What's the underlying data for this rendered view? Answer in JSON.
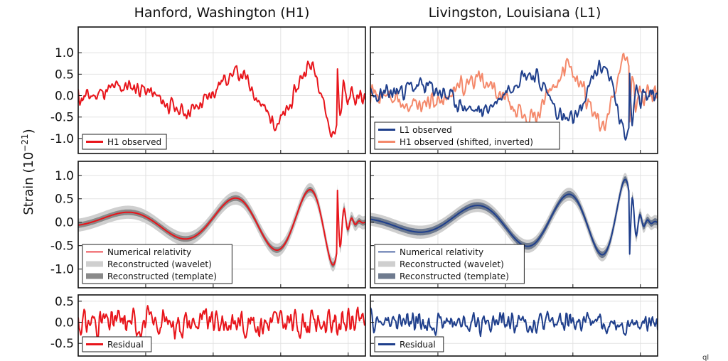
{
  "figure": {
    "ylabel_main": "Strain (10",
    "ylabel_exp": "−21",
    "ylabel_close": ")",
    "corner_mark": "ql"
  },
  "chart_data": [
    {
      "type": "line",
      "id": "h1-observed",
      "title": "Hanford, Washington (H1)",
      "ylim": [
        -1.35,
        1.6
      ],
      "yticks": [
        -1.0,
        -0.5,
        0.0,
        0.5,
        1.0
      ],
      "ytick_labels": [
        "-1.0",
        "-0.5",
        "0.0",
        "0.5",
        "1.0"
      ],
      "grid": true,
      "legend_position": "bottom-left",
      "series": [
        {
          "name": "H1 observed",
          "style": "line",
          "color": "#e8151b",
          "generator": "noisy_chirp",
          "amp": 0.25,
          "seed": 11
        }
      ]
    },
    {
      "type": "line",
      "id": "l1-observed",
      "title": "Livingston, Louisiana (L1)",
      "ylim": [
        -1.35,
        1.6
      ],
      "yticks": [
        -1.0,
        -0.5,
        0.0,
        0.5,
        1.0
      ],
      "ytick_labels": [
        "-1.0",
        "-0.5",
        "0.0",
        "0.5",
        "1.0"
      ],
      "grid": true,
      "legend_position": "bottom-left",
      "series": [
        {
          "name": "L1 observed",
          "style": "line",
          "color": "#1f3f8c",
          "generator": "noisy_chirp",
          "amp": 0.25,
          "seed": 23
        },
        {
          "name": "H1 observed (shifted, inverted)",
          "style": "line",
          "color": "#f4896b",
          "generator": "noisy_chirp",
          "amp": 0.3,
          "seed": 11,
          "invert": true,
          "draw_first": true
        }
      ]
    },
    {
      "type": "line",
      "id": "h1-reconstruction",
      "title": "",
      "ylim": [
        -1.4,
        1.3
      ],
      "yticks": [
        -1.0,
        -0.5,
        0.0,
        0.5,
        1.0
      ],
      "ytick_labels": [
        "-1.0",
        "-0.5",
        "0.0",
        "0.5",
        "1.0"
      ],
      "grid": true,
      "legend_position": "bottom-left",
      "series": [
        {
          "name": "Numerical relativity",
          "style": "line",
          "color": "#e8151b",
          "generator": "chirp"
        },
        {
          "name": "Reconstructed (wavelet)",
          "style": "band",
          "color": "#cfcfcf",
          "generator": "chirp_band",
          "width": 0.14
        },
        {
          "name": "Reconstructed (template)",
          "style": "band",
          "color": "#8a8a8a",
          "generator": "chirp_band",
          "width": 0.06
        }
      ]
    },
    {
      "type": "line",
      "id": "l1-reconstruction",
      "title": "",
      "ylim": [
        -1.4,
        1.3
      ],
      "yticks": [
        -1.0,
        -0.5,
        0.0,
        0.5,
        1.0
      ],
      "ytick_labels": [
        "-1.0",
        "-0.5",
        "0.0",
        "0.5",
        "1.0"
      ],
      "grid": true,
      "legend_position": "bottom-left",
      "series": [
        {
          "name": "Numerical relativity",
          "style": "line",
          "color": "#1f3f8c",
          "generator": "chirp",
          "invert": true
        },
        {
          "name": "Reconstructed (wavelet)",
          "style": "band",
          "color": "#cfcfcf",
          "generator": "chirp_band",
          "width": 0.14,
          "invert": true
        },
        {
          "name": "Reconstructed (template)",
          "style": "band",
          "color": "#6f7b8f",
          "generator": "chirp_band",
          "width": 0.07,
          "invert": true
        }
      ]
    },
    {
      "type": "line",
      "id": "h1-residual",
      "title": "",
      "ylim": [
        -0.8,
        0.65
      ],
      "yticks": [
        -0.5,
        0.0,
        0.5
      ],
      "ytick_labels": [
        "-0.5",
        "0.0",
        "0.5"
      ],
      "grid": true,
      "legend_position": "bottom-left",
      "series": [
        {
          "name": "Residual",
          "style": "line",
          "color": "#e8151b",
          "generator": "noise",
          "amp": 0.2,
          "seed": 31
        }
      ]
    },
    {
      "type": "line",
      "id": "l1-residual",
      "title": "",
      "ylim": [
        -0.8,
        0.65
      ],
      "yticks": [
        -0.5,
        0.0,
        0.5
      ],
      "ytick_labels": [
        "-0.5",
        "0.0",
        "0.5"
      ],
      "grid": true,
      "legend_position": "bottom-left",
      "series": [
        {
          "name": "Residual",
          "style": "line",
          "color": "#1f3f8c",
          "generator": "noise",
          "amp": 0.16,
          "seed": 47
        }
      ]
    }
  ]
}
